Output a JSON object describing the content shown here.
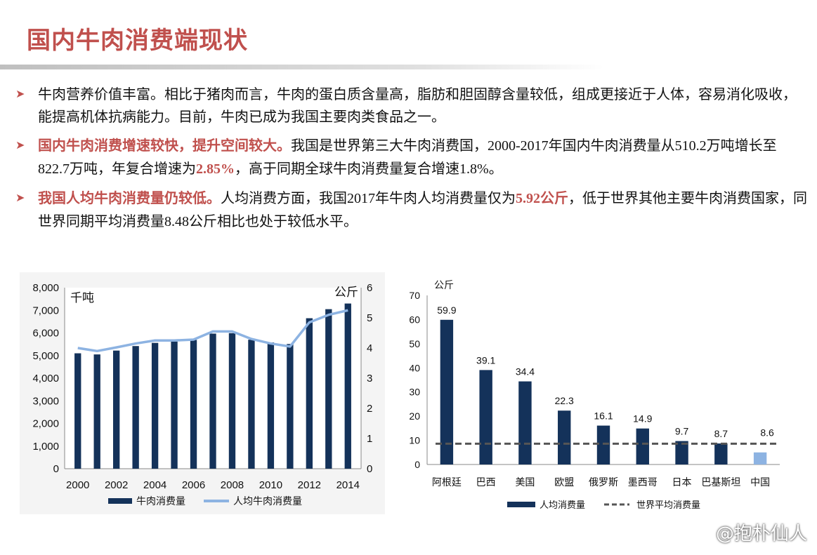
{
  "title": "国内牛肉消费端现状",
  "bullets": [
    {
      "parts": [
        {
          "text": "牛肉营养价值丰富。相比于猪肉而言，牛肉的蛋白质含量高，脂肪和胆固醇含量较低，组成更接近于人体，容易消化吸收，能提高机体抗病能力。目前，牛肉已成为我国主要肉类食品之一。",
          "style": ""
        }
      ]
    },
    {
      "parts": [
        {
          "text": "国内牛肉消费增速较快，提升空间较大。",
          "style": "hl"
        },
        {
          "text": "我国是世界第三大牛肉消费国，",
          "style": ""
        },
        {
          "text": "2000-2017",
          "style": "num"
        },
        {
          "text": "年国内牛肉消费量从",
          "style": ""
        },
        {
          "text": "510.2",
          "style": "num"
        },
        {
          "text": "万吨增长至",
          "style": ""
        },
        {
          "text": "822.7",
          "style": "num"
        },
        {
          "text": "万吨，年复合增速为",
          "style": ""
        },
        {
          "text": "2.85%",
          "style": "num hl"
        },
        {
          "text": "，高于同期全球牛肉消费量复合增速",
          "style": ""
        },
        {
          "text": "1.8%",
          "style": "num"
        },
        {
          "text": "。",
          "style": ""
        }
      ]
    },
    {
      "parts": [
        {
          "text": "我国人均牛肉消费量仍较低。",
          "style": "hl"
        },
        {
          "text": "人均消费方面，我国",
          "style": ""
        },
        {
          "text": "2017",
          "style": "num"
        },
        {
          "text": "年牛肉人均消费量仅为",
          "style": ""
        },
        {
          "text": "5.92",
          "style": "num hl"
        },
        {
          "text": "公斤",
          "style": "hl"
        },
        {
          "text": "，低于世界其他主要牛肉消费国家，同世界同期平均消费量",
          "style": ""
        },
        {
          "text": "8.48",
          "style": "num"
        },
        {
          "text": "公斤相比也处于较低水平。",
          "style": ""
        }
      ]
    }
  ],
  "chart_data": [
    {
      "type": "bar",
      "x": [
        2000,
        2001,
        2002,
        2003,
        2004,
        2005,
        2006,
        2007,
        2008,
        2009,
        2010,
        2011,
        2012,
        2013,
        2014
      ],
      "x_ticks": [
        "2000",
        "2002",
        "2004",
        "2006",
        "2008",
        "2010",
        "2012",
        "2014"
      ],
      "series": [
        {
          "name": "牛肉消费量",
          "type": "bar",
          "axis": "left",
          "values": [
            5100,
            5050,
            5220,
            5420,
            5560,
            5620,
            5690,
            5970,
            5990,
            5700,
            5580,
            5510,
            6650,
            7050,
            7300
          ],
          "color": "#14325a"
        },
        {
          "name": "人均牛肉消费量",
          "type": "line",
          "axis": "right",
          "values": [
            4.0,
            3.9,
            4.02,
            4.15,
            4.25,
            4.25,
            4.28,
            4.55,
            4.55,
            4.3,
            4.15,
            4.05,
            4.85,
            5.1,
            5.25
          ],
          "color": "#8db3e2"
        }
      ],
      "left_axis": {
        "unit": "千吨",
        "min": 0,
        "max": 8000,
        "step": 1000,
        "ticks": [
          "0",
          "1,000",
          "2,000",
          "3,000",
          "4,000",
          "5,000",
          "6,000",
          "7,000",
          "8,000"
        ]
      },
      "right_axis": {
        "unit": "公斤",
        "min": 0,
        "max": 6,
        "step": 1,
        "ticks": [
          "0",
          "1",
          "2",
          "3",
          "4",
          "5",
          "6"
        ]
      },
      "legend_position": "bottom"
    },
    {
      "type": "bar",
      "categories": [
        "阿根廷",
        "巴西",
        "美国",
        "欧盟",
        "俄罗斯",
        "墨西哥",
        "日本",
        "巴基斯坦",
        "中国"
      ],
      "values": [
        59.9,
        39.1,
        34.4,
        22.3,
        16.1,
        14.9,
        9.7,
        8.7,
        5.0
      ],
      "data_labels": [
        "59.9",
        "39.1",
        "34.4",
        "22.3",
        "16.1",
        "14.9",
        "9.7",
        "8.7",
        null
      ],
      "bar_colors": [
        "#14325a",
        "#14325a",
        "#14325a",
        "#14325a",
        "#14325a",
        "#14325a",
        "#14325a",
        "#14325a",
        "#8db3e2"
      ],
      "world_average": {
        "name": "世界平均消费量",
        "value": 8.6,
        "label": "8.6"
      },
      "series_name": "人均消费量",
      "y_axis": {
        "unit": "公斤",
        "min": 0,
        "max": 70,
        "step": 10,
        "ticks": [
          "0",
          "10",
          "20",
          "30",
          "40",
          "50",
          "60",
          "70"
        ]
      },
      "legend_position": "bottom"
    }
  ],
  "watermark": "@抱朴仙人"
}
